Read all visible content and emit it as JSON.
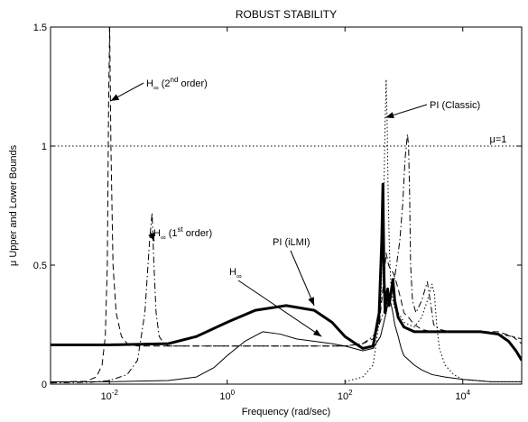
{
  "chart_data": {
    "type": "line",
    "title": "ROBUST STABILITY",
    "xlabel": "Frequency (rad/sec)",
    "ylabel": "μ Upper and Lower Bounds",
    "xscale": "log",
    "xlim": [
      0.001,
      100000
    ],
    "ylim": [
      0,
      1.5
    ],
    "xticks": [
      {
        "value": 0.01,
        "base": "10",
        "exp": "-2"
      },
      {
        "value": 1,
        "base": "10",
        "exp": "0"
      },
      {
        "value": 100,
        "base": "10",
        "exp": "2"
      },
      {
        "value": 10000,
        "base": "10",
        "exp": "4"
      }
    ],
    "yticks": [
      {
        "value": 0,
        "label": "0"
      },
      {
        "value": 0.5,
        "label": "0.5"
      },
      {
        "value": 1,
        "label": "1"
      },
      {
        "value": 1.5,
        "label": "1.5"
      }
    ],
    "grid": false,
    "legend": "none",
    "reference_line": {
      "y": 1,
      "label": "μ=1",
      "style": "dotted"
    },
    "series": [
      {
        "style": "dashed",
        "width": 1,
        "x": [
          0.001,
          0.004,
          0.006,
          0.0075,
          0.0085,
          0.0092,
          0.0097,
          0.0101,
          0.0106,
          0.0115,
          0.013,
          0.016,
          0.02,
          0.03,
          0.05,
          0.1,
          0.3,
          1,
          3,
          10,
          30,
          100,
          200,
          300,
          380,
          420,
          460,
          500,
          550,
          600,
          650,
          700,
          800,
          900,
          1000,
          1200,
          1500,
          2000,
          3000,
          5000,
          10000,
          20000,
          40000,
          70000,
          100000
        ],
        "y": [
          0.008,
          0.012,
          0.03,
          0.08,
          0.2,
          0.5,
          1.2,
          1.5,
          1.0,
          0.5,
          0.3,
          0.2,
          0.17,
          0.16,
          0.16,
          0.16,
          0.16,
          0.16,
          0.16,
          0.16,
          0.16,
          0.16,
          0.17,
          0.19,
          0.25,
          0.35,
          0.45,
          0.55,
          0.5,
          0.48,
          0.47,
          0.45,
          0.4,
          0.35,
          0.3,
          0.28,
          0.25,
          0.23,
          0.22,
          0.22,
          0.22,
          0.22,
          0.22,
          0.2,
          0.17
        ]
      },
      {
        "style": "dashdot",
        "width": 1,
        "x": [
          0.001,
          0.005,
          0.01,
          0.02,
          0.03,
          0.04,
          0.048,
          0.053,
          0.057,
          0.062,
          0.07,
          0.085,
          0.1,
          0.2,
          0.5,
          1,
          3,
          10,
          30,
          100,
          200,
          300,
          380,
          450,
          550,
          650,
          750,
          850,
          950,
          1050,
          1150,
          1200,
          1250,
          1300,
          1400,
          1600,
          2000,
          2500,
          3000,
          3200,
          4000,
          6000,
          10000,
          20000,
          40000,
          70000,
          100000
        ],
        "y": [
          0.005,
          0.008,
          0.015,
          0.04,
          0.1,
          0.3,
          0.6,
          0.72,
          0.5,
          0.3,
          0.2,
          0.17,
          0.16,
          0.16,
          0.16,
          0.16,
          0.16,
          0.16,
          0.16,
          0.16,
          0.17,
          0.2,
          0.25,
          0.3,
          0.35,
          0.4,
          0.5,
          0.6,
          0.75,
          0.95,
          1.05,
          1.0,
          0.8,
          0.5,
          0.35,
          0.3,
          0.35,
          0.43,
          0.3,
          0.25,
          0.23,
          0.22,
          0.22,
          0.22,
          0.21,
          0.2,
          0.19
        ]
      },
      {
        "style": "dotted",
        "width": 1,
        "x": [
          100,
          200,
          300,
          400,
          450,
          480,
          500,
          520,
          540,
          570,
          600,
          650,
          700,
          800,
          900,
          1000,
          1200,
          1500,
          2000,
          2500,
          3000,
          3300,
          3600,
          4000,
          5000,
          7000,
          10000,
          30000,
          100000
        ],
        "y": [
          0.01,
          0.03,
          0.08,
          0.3,
          0.7,
          1.1,
          1.28,
          1.1,
          0.8,
          0.55,
          0.42,
          0.35,
          0.32,
          0.3,
          0.28,
          0.26,
          0.25,
          0.24,
          0.28,
          0.35,
          0.42,
          0.38,
          0.25,
          0.15,
          0.08,
          0.04,
          0.02,
          0.01,
          0.01
        ]
      },
      {
        "style": "solid",
        "width": 3,
        "x": [
          0.001,
          0.01,
          0.1,
          0.3,
          1,
          3,
          10,
          30,
          60,
          100,
          200,
          300,
          380,
          420,
          440,
          460,
          480,
          500,
          530,
          560,
          600,
          650,
          700,
          800,
          1000,
          1500,
          2000,
          3000,
          5000,
          10000,
          20000,
          40000,
          60000,
          80000,
          100000
        ],
        "y": [
          0.165,
          0.165,
          0.17,
          0.2,
          0.26,
          0.31,
          0.33,
          0.31,
          0.26,
          0.2,
          0.15,
          0.16,
          0.3,
          0.6,
          0.84,
          0.45,
          0.3,
          0.36,
          0.4,
          0.33,
          0.38,
          0.44,
          0.35,
          0.28,
          0.24,
          0.22,
          0.22,
          0.22,
          0.22,
          0.22,
          0.22,
          0.21,
          0.18,
          0.14,
          0.1
        ]
      },
      {
        "style": "solid",
        "width": 1,
        "x": [
          0.001,
          0.01,
          0.1,
          0.3,
          0.6,
          1,
          2,
          4,
          8,
          15,
          30,
          60,
          100,
          200,
          300,
          400,
          500,
          550,
          600,
          650,
          700,
          800,
          900,
          1000,
          1500,
          2000,
          3000,
          5000,
          10000,
          30000,
          100000
        ],
        "y": [
          0.01,
          0.01,
          0.015,
          0.03,
          0.07,
          0.12,
          0.18,
          0.22,
          0.21,
          0.19,
          0.18,
          0.17,
          0.16,
          0.14,
          0.15,
          0.2,
          0.3,
          0.35,
          0.34,
          0.3,
          0.25,
          0.2,
          0.15,
          0.12,
          0.08,
          0.06,
          0.04,
          0.03,
          0.02,
          0.01,
          0.01
        ]
      }
    ],
    "annotations": [
      {
        "main": "H",
        "sub": "∞",
        "tail": " (2",
        "sup": "nd",
        "end": " order)",
        "x": 0.0105,
        "y": 1.19
      },
      {
        "main": "H",
        "sub": "∞",
        "tail": " (1",
        "sup": "st",
        "end": " order)",
        "x": 0.058,
        "y": 0.6
      },
      {
        "main": "PI (Classic)",
        "sub": "",
        "tail": "",
        "sup": "",
        "end": "",
        "x": 490,
        "y": 1.12
      },
      {
        "main": "PI (iLMI)",
        "sub": "",
        "tail": "",
        "sup": "",
        "end": "",
        "x": 30,
        "y": 0.33
      },
      {
        "main": "H",
        "sub": "∞",
        "tail": "",
        "sup": "",
        "end": "",
        "x": 40,
        "y": 0.2
      }
    ]
  }
}
